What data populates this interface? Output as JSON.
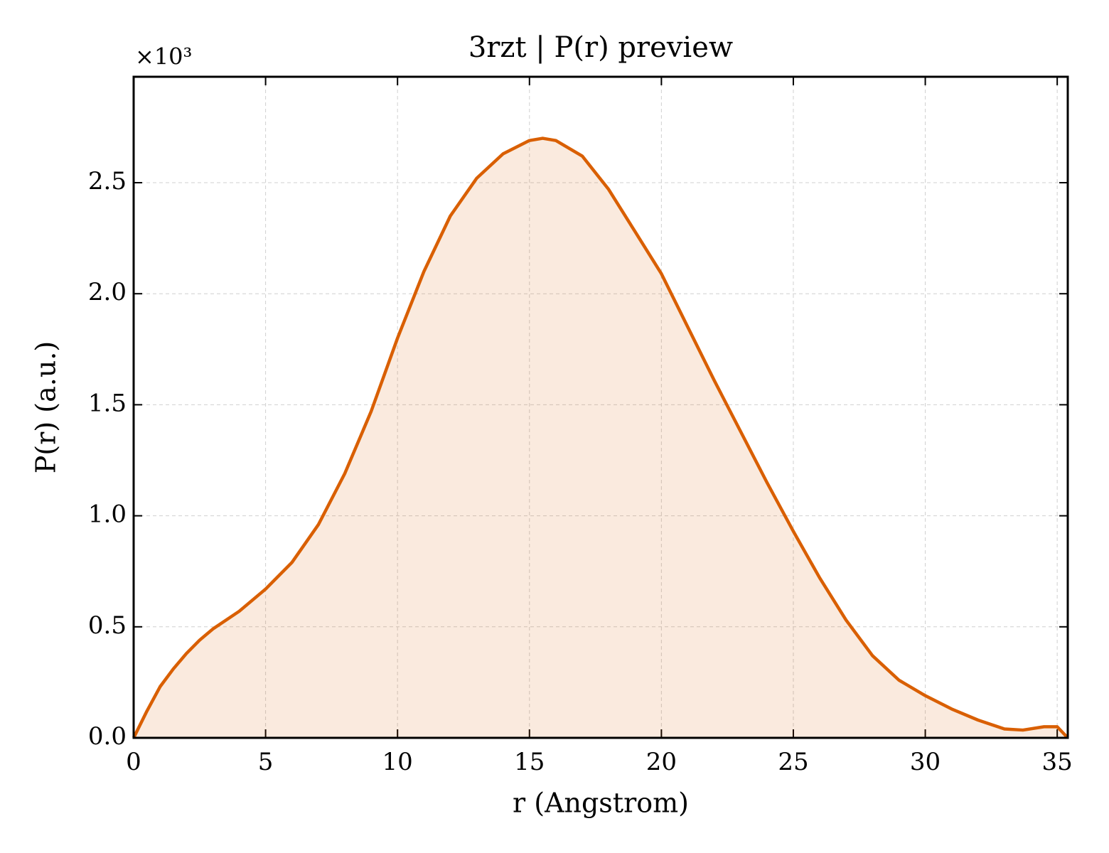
{
  "chart_data": {
    "type": "line",
    "title": "3rzt | P(r) preview",
    "x_label": "r (Angstrom)",
    "y_label": "P(r) (a.u.)",
    "y_offset_label": "×10³",
    "x": [
      0,
      0.5,
      1,
      1.5,
      2,
      2.5,
      3,
      4,
      5,
      6,
      7,
      8,
      9,
      10,
      11,
      12,
      13,
      14,
      15,
      15.5,
      16,
      17,
      18,
      19,
      20,
      21,
      22,
      23,
      24,
      25,
      26,
      27,
      28,
      29,
      30,
      31,
      32,
      33,
      33.7,
      34.5,
      35,
      35.4
    ],
    "series": [
      {
        "name": "P(r)",
        "color": "#d95f02",
        "values": [
          0,
          0.12,
          0.23,
          0.31,
          0.38,
          0.44,
          0.49,
          0.57,
          0.67,
          0.79,
          0.96,
          1.19,
          1.47,
          1.8,
          2.1,
          2.35,
          2.52,
          2.63,
          2.69,
          2.7,
          2.69,
          2.62,
          2.47,
          2.28,
          2.09,
          1.85,
          1.61,
          1.38,
          1.15,
          0.93,
          0.72,
          0.53,
          0.37,
          0.26,
          0.19,
          0.13,
          0.08,
          0.04,
          0.035,
          0.05,
          0.05,
          0
        ]
      }
    ],
    "fill": true,
    "fill_opacity": 0.13,
    "xlim": [
      0,
      35.4
    ],
    "ylim": [
      0,
      2.977
    ],
    "xticks": [
      0,
      5,
      10,
      15,
      20,
      25,
      30,
      35
    ],
    "yticks": [
      {
        "value": 0,
        "label": "0.0"
      },
      {
        "value": 0.5,
        "label": "0.5"
      },
      {
        "value": 1,
        "label": "1.0"
      },
      {
        "value": 1.5,
        "label": "1.5"
      },
      {
        "value": 2,
        "label": "2.0"
      },
      {
        "value": 2.5,
        "label": "2.5"
      }
    ],
    "grid": true
  }
}
